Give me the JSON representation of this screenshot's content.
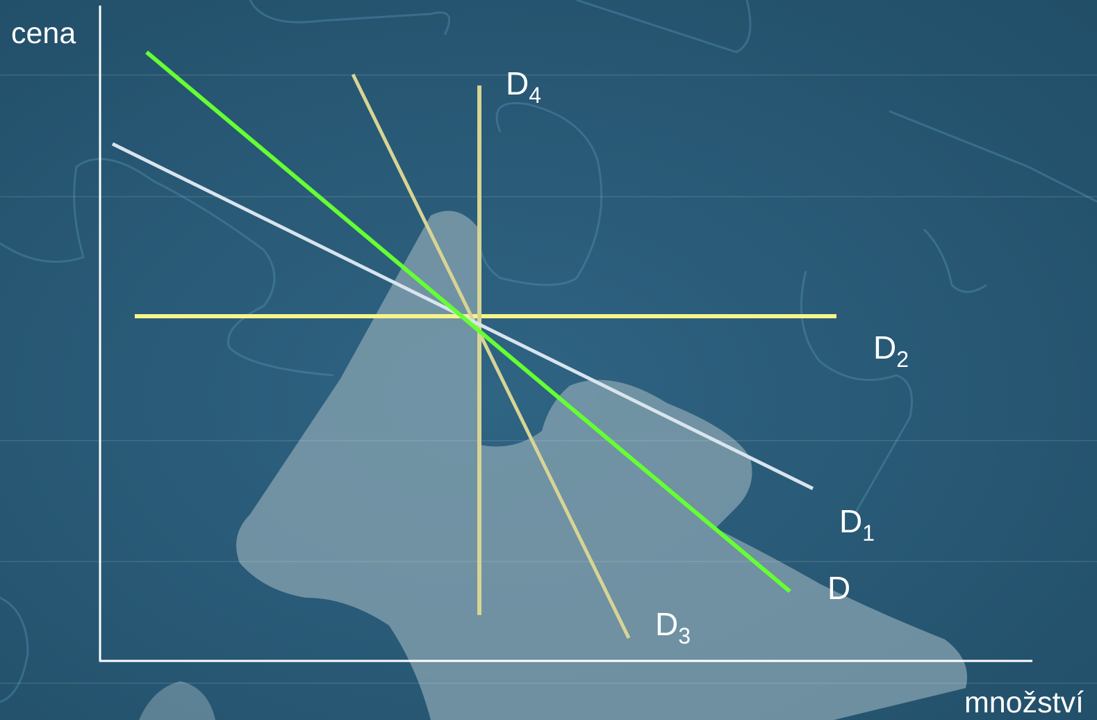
{
  "axes": {
    "y_label": "cena",
    "x_label": "množství"
  },
  "curves": [
    {
      "id": "D",
      "base": "D",
      "sub": "",
      "color": "#66ff33"
    },
    {
      "id": "D1",
      "base": "D",
      "sub": "1",
      "color": "#d8e4ee"
    },
    {
      "id": "D2",
      "base": "D",
      "sub": "2",
      "color": "#f7f58a"
    },
    {
      "id": "D3",
      "base": "D",
      "sub": "3",
      "color": "#d7d494"
    },
    {
      "id": "D4",
      "base": "D",
      "sub": "4",
      "color": "#d7d494"
    }
  ],
  "colors": {
    "background": "#24516c",
    "axis": "#ffffff"
  }
}
